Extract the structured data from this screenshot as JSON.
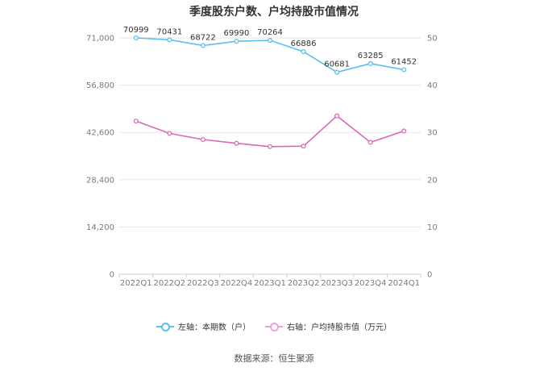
{
  "title": "季度股东户数、户均持股市值情况",
  "source": "数据来源：恒生聚源",
  "colors": {
    "left_series": "#5bc0ee",
    "right_series": "#d96bb4",
    "grid": "#e6e6e6"
  },
  "legend": [
    {
      "label": "左轴：本期数（户）",
      "color": "#5bc0ee"
    },
    {
      "label": "右轴：户均持股市值（万元）",
      "color": "#e8a6d4"
    }
  ],
  "chart_data": {
    "type": "line",
    "categories": [
      "2022Q1",
      "2022Q2",
      "2022Q3",
      "2022Q4",
      "2023Q1",
      "2023Q2",
      "2023Q3",
      "2023Q4",
      "2024Q1"
    ],
    "y_left": {
      "ylim": [
        0,
        71000
      ],
      "ticks": [
        0,
        14200,
        28400,
        42600,
        56800,
        71000
      ],
      "tick_labels": [
        "0",
        "14,200",
        "28,400",
        "42,600",
        "56,800",
        "71,000"
      ]
    },
    "y_right": {
      "ylim": [
        0,
        50
      ],
      "ticks": [
        0,
        10,
        20,
        30,
        40,
        50
      ],
      "tick_labels": [
        "0",
        "10",
        "20",
        "30",
        "40",
        "50"
      ]
    },
    "grid": true,
    "legend_position": "bottom",
    "series": [
      {
        "name": "左轴：本期数（户）",
        "axis": "left",
        "values": [
          70999,
          70431,
          68722,
          69990,
          70264,
          66886,
          60681,
          63285,
          61452
        ],
        "labels": [
          "70999",
          "70431",
          "68722",
          "69990",
          "70264",
          "66886",
          "60681",
          "63285",
          "61452"
        ]
      },
      {
        "name": "右轴：户均持股市值（万元）",
        "axis": "right",
        "values": [
          32.4,
          29.8,
          28.5,
          27.7,
          27.0,
          27.1,
          33.5,
          27.9,
          30.3
        ]
      }
    ]
  }
}
